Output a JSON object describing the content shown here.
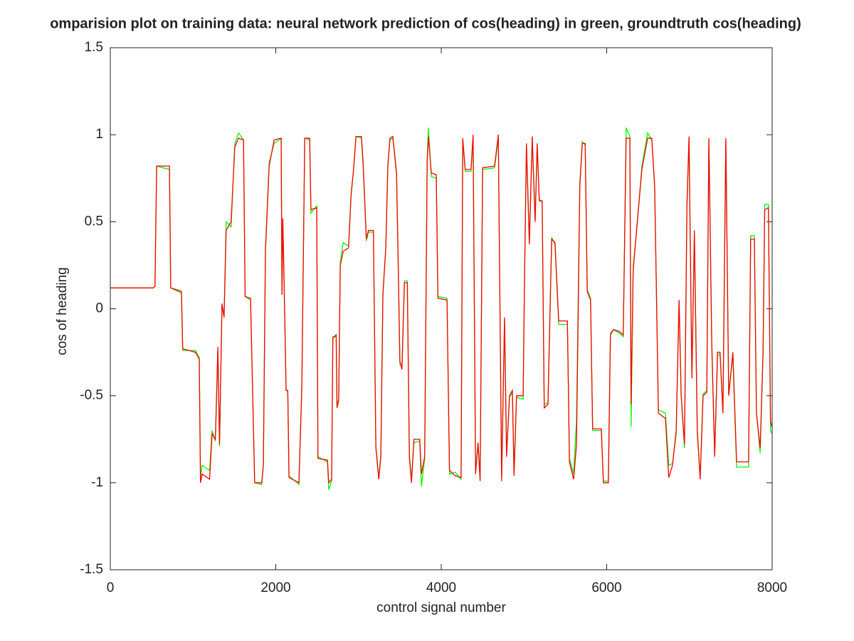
{
  "chart_data": {
    "type": "line",
    "title": "omparision plot on training data: neural network prediction of cos(heading) in green, groundtruth cos(heading)",
    "xlabel": "control signal number",
    "ylabel": "cos of heading",
    "xlim": [
      0,
      8000
    ],
    "ylim": [
      -1.5,
      1.5
    ],
    "xticks": [
      0,
      2000,
      4000,
      6000,
      8000
    ],
    "yticks": [
      -1.5,
      -1,
      -0.5,
      0,
      0.5,
      1,
      1.5
    ],
    "grid": false,
    "x": [
      0,
      520,
      540,
      560,
      715,
      730,
      860,
      875,
      1030,
      1075,
      1090,
      1110,
      1200,
      1230,
      1270,
      1300,
      1320,
      1350,
      1375,
      1400,
      1460,
      1505,
      1550,
      1610,
      1630,
      1695,
      1745,
      1830,
      1850,
      1875,
      1920,
      1980,
      2065,
      2075,
      2085,
      2095,
      2125,
      2145,
      2160,
      2280,
      2315,
      2350,
      2410,
      2425,
      2495,
      2510,
      2625,
      2640,
      2675,
      2690,
      2730,
      2740,
      2760,
      2780,
      2815,
      2880,
      2910,
      2940,
      2970,
      3035,
      3055,
      3095,
      3120,
      3180,
      3210,
      3245,
      3270,
      3295,
      3330,
      3355,
      3380,
      3415,
      3460,
      3485,
      3500,
      3525,
      3555,
      3590,
      3615,
      3640,
      3670,
      3740,
      3760,
      3800,
      3830,
      3845,
      3880,
      3940,
      3960,
      4070,
      4100,
      4170,
      4240,
      4260,
      4290,
      4360,
      4385,
      4415,
      4445,
      4470,
      4500,
      4645,
      4690,
      4730,
      4765,
      4790,
      4825,
      4860,
      4880,
      4910,
      4990,
      5005,
      5030,
      5065,
      5100,
      5135,
      5160,
      5185,
      5220,
      5245,
      5290,
      5335,
      5375,
      5420,
      5525,
      5550,
      5600,
      5635,
      5675,
      5705,
      5740,
      5765,
      5805,
      5830,
      5935,
      5960,
      6020,
      6045,
      6080,
      6150,
      6200,
      6235,
      6280,
      6295,
      6320,
      6370,
      6425,
      6495,
      6545,
      6580,
      6625,
      6710,
      6750,
      6795,
      6840,
      6875,
      6900,
      6940,
      6970,
      6995,
      7030,
      7060,
      7095,
      7130,
      7165,
      7210,
      7235,
      7270,
      7305,
      7340,
      7370,
      7405,
      7440,
      7475,
      7525,
      7570,
      7715,
      7740,
      7785,
      7810,
      7855,
      7890,
      7910,
      7955,
      7980,
      8000
    ],
    "series": [
      {
        "name": "neural network prediction",
        "color": "#00ff00",
        "values": [
          0.12,
          0.12,
          0.13,
          0.82,
          0.8,
          0.12,
          0.09,
          -0.24,
          -0.24,
          -0.28,
          -0.97,
          -0.9,
          -0.93,
          -0.7,
          -0.76,
          -0.24,
          -0.79,
          0.02,
          -0.04,
          0.5,
          0.47,
          0.95,
          1.01,
          0.97,
          0.07,
          0.05,
          -1.0,
          -1.01,
          -0.89,
          0.34,
          0.84,
          0.95,
          0.98,
          0.1,
          0.5,
          0.3,
          -0.46,
          -0.48,
          -0.96,
          -1.01,
          -0.44,
          0.98,
          0.97,
          0.55,
          0.59,
          -0.85,
          -0.88,
          -1.04,
          -0.99,
          -0.16,
          -0.16,
          -0.55,
          -0.52,
          0.27,
          0.38,
          0.36,
          0.66,
          0.79,
          0.99,
          0.98,
          0.83,
          0.39,
          0.44,
          0.44,
          -0.79,
          -0.97,
          -0.84,
          0.09,
          0.36,
          0.83,
          0.97,
          0.98,
          0.77,
          0.13,
          -0.32,
          -0.33,
          0.16,
          0.16,
          -0.84,
          -0.98,
          -0.77,
          -0.76,
          -1.02,
          -0.86,
          0.86,
          1.04,
          0.76,
          0.75,
          0.07,
          0.06,
          -0.95,
          -0.94,
          -0.98,
          0.97,
          0.79,
          0.79,
          0.99,
          -0.93,
          -0.78,
          -0.97,
          0.8,
          0.81,
          0.98,
          -0.97,
          -0.06,
          -0.83,
          -0.51,
          -0.48,
          -0.94,
          -0.51,
          -0.52,
          0.12,
          0.94,
          0.38,
          0.98,
          0.51,
          0.94,
          0.63,
          0.61,
          -0.55,
          -0.54,
          0.41,
          0.37,
          -0.09,
          -0.09,
          -0.86,
          -0.95,
          -0.64,
          0.72,
          0.96,
          0.94,
          0.11,
          0.06,
          -0.7,
          -0.7,
          -0.99,
          -0.99,
          -0.14,
          -0.12,
          -0.14,
          -0.16,
          1.04,
          0.99,
          -0.68,
          0.24,
          0.49,
          0.82,
          1.01,
          0.97,
          0.71,
          -0.58,
          -0.6,
          -0.9,
          -0.89,
          -0.72,
          0.04,
          -0.49,
          -0.8,
          0.58,
          0.98,
          -0.39,
          0.43,
          -0.72,
          -0.96,
          -0.49,
          -0.47,
          0.97,
          -0.19,
          -0.84,
          -0.27,
          -0.26,
          -0.6,
          0.97,
          -0.49,
          -0.27,
          -0.91,
          -0.91,
          0.42,
          0.42,
          -0.59,
          -0.83,
          -0.26,
          0.6,
          0.6,
          -0.7,
          -0.72
        ]
      },
      {
        "name": "groundtruth",
        "color": "#ff0000",
        "values": [
          0.12,
          0.12,
          0.13,
          0.82,
          0.82,
          0.12,
          0.1,
          -0.23,
          -0.25,
          -0.29,
          -1.0,
          -0.95,
          -0.98,
          -0.72,
          -0.75,
          -0.22,
          -0.78,
          0.03,
          -0.05,
          0.45,
          0.5,
          0.93,
          0.98,
          0.97,
          0.07,
          0.06,
          -1.0,
          -1.0,
          -0.9,
          0.33,
          0.82,
          0.97,
          0.98,
          0.08,
          0.52,
          0.28,
          -0.47,
          -0.47,
          -0.97,
          -1.0,
          -0.45,
          0.98,
          0.98,
          0.57,
          0.58,
          -0.86,
          -0.87,
          -1.0,
          -0.98,
          -0.17,
          -0.15,
          -0.57,
          -0.53,
          0.25,
          0.33,
          0.35,
          0.65,
          0.8,
          0.99,
          0.99,
          0.85,
          0.4,
          0.45,
          0.45,
          -0.8,
          -0.98,
          -0.85,
          0.08,
          0.35,
          0.82,
          0.98,
          0.99,
          0.78,
          0.12,
          -0.3,
          -0.35,
          0.15,
          0.15,
          -0.85,
          -1.0,
          -0.75,
          -0.75,
          -0.95,
          -0.85,
          0.85,
          0.99,
          0.78,
          0.77,
          0.06,
          0.05,
          -0.93,
          -0.96,
          -0.97,
          0.98,
          0.8,
          0.8,
          1.0,
          -0.95,
          -0.77,
          -0.99,
          0.81,
          0.82,
          1.0,
          -0.99,
          -0.05,
          -0.85,
          -0.5,
          -0.47,
          -0.96,
          -0.5,
          -0.5,
          0.1,
          0.95,
          0.37,
          0.99,
          0.5,
          0.95,
          0.62,
          0.62,
          -0.57,
          -0.55,
          0.4,
          0.38,
          -0.07,
          -0.07,
          -0.88,
          -0.98,
          -0.78,
          0.7,
          0.95,
          0.95,
          0.1,
          0.05,
          -0.69,
          -0.69,
          -1.0,
          -1.0,
          -0.15,
          -0.12,
          -0.13,
          -0.15,
          0.98,
          0.98,
          -0.55,
          0.22,
          0.5,
          0.8,
          0.98,
          0.98,
          0.7,
          -0.6,
          -0.63,
          -0.97,
          -0.9,
          -0.7,
          0.05,
          -0.5,
          -0.78,
          0.6,
          0.99,
          -0.4,
          0.45,
          -0.7,
          -0.98,
          -0.5,
          -0.48,
          0.98,
          -0.2,
          -0.85,
          -0.25,
          -0.25,
          -0.6,
          0.98,
          -0.5,
          -0.25,
          -0.88,
          -0.88,
          0.4,
          0.4,
          -0.6,
          -0.8,
          -0.25,
          0.57,
          0.58,
          -0.65,
          -0.68
        ]
      }
    ]
  }
}
